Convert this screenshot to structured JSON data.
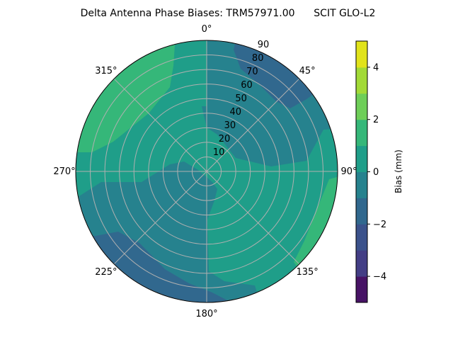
{
  "chart_data": {
    "type": "polar-contour",
    "title": "Delta Antenna Phase Biases: TRM57971.00      SCIT GLO-L2",
    "angle_ticks": [
      "0°",
      "45°",
      "90°",
      "135°",
      "180°",
      "225°",
      "270°",
      "315°"
    ],
    "angle_direction": "clockwise",
    "angle_zero": "top",
    "radial_ticks": [
      "10",
      "20",
      "30",
      "40",
      "50",
      "60",
      "70",
      "80",
      "90"
    ],
    "radial_range": [
      0,
      90
    ],
    "grid": true,
    "colorbar": {
      "label": "Bias (mm)",
      "range": [
        -5,
        5
      ],
      "ticks": [
        "4",
        "2",
        "0",
        "−2",
        "−4"
      ],
      "tick_values": [
        4,
        2,
        0,
        -2,
        -4
      ],
      "levels": [
        -5,
        -4,
        -3,
        -2,
        -1,
        0,
        1,
        2,
        3,
        4,
        5
      ],
      "colors": [
        "#471365",
        "#433e85",
        "#3b528b",
        "#31688e",
        "#26828e",
        "#1f9e89",
        "#35b779",
        "#6ece58",
        "#a2da37",
        "#e1e31b"
      ],
      "colormap": "viridis"
    },
    "regions": [
      {
        "name": "base",
        "level": [
          0,
          1
        ],
        "color": "#1f9e89"
      },
      {
        "name": "north-east",
        "level": [
          -1,
          0
        ],
        "color": "#26828e"
      },
      {
        "name": "south-west",
        "level": [
          -1,
          0
        ],
        "color": "#26828e"
      },
      {
        "name": "north-west",
        "level": [
          1,
          2
        ],
        "color": "#35b779"
      },
      {
        "name": "east",
        "level": [
          1,
          2
        ],
        "color": "#35b779"
      },
      {
        "name": "north-east-low",
        "level": [
          -2,
          -1
        ],
        "color": "#31688e"
      },
      {
        "name": "south-west-low",
        "level": [
          -2,
          -1
        ],
        "color": "#31688e"
      }
    ]
  }
}
